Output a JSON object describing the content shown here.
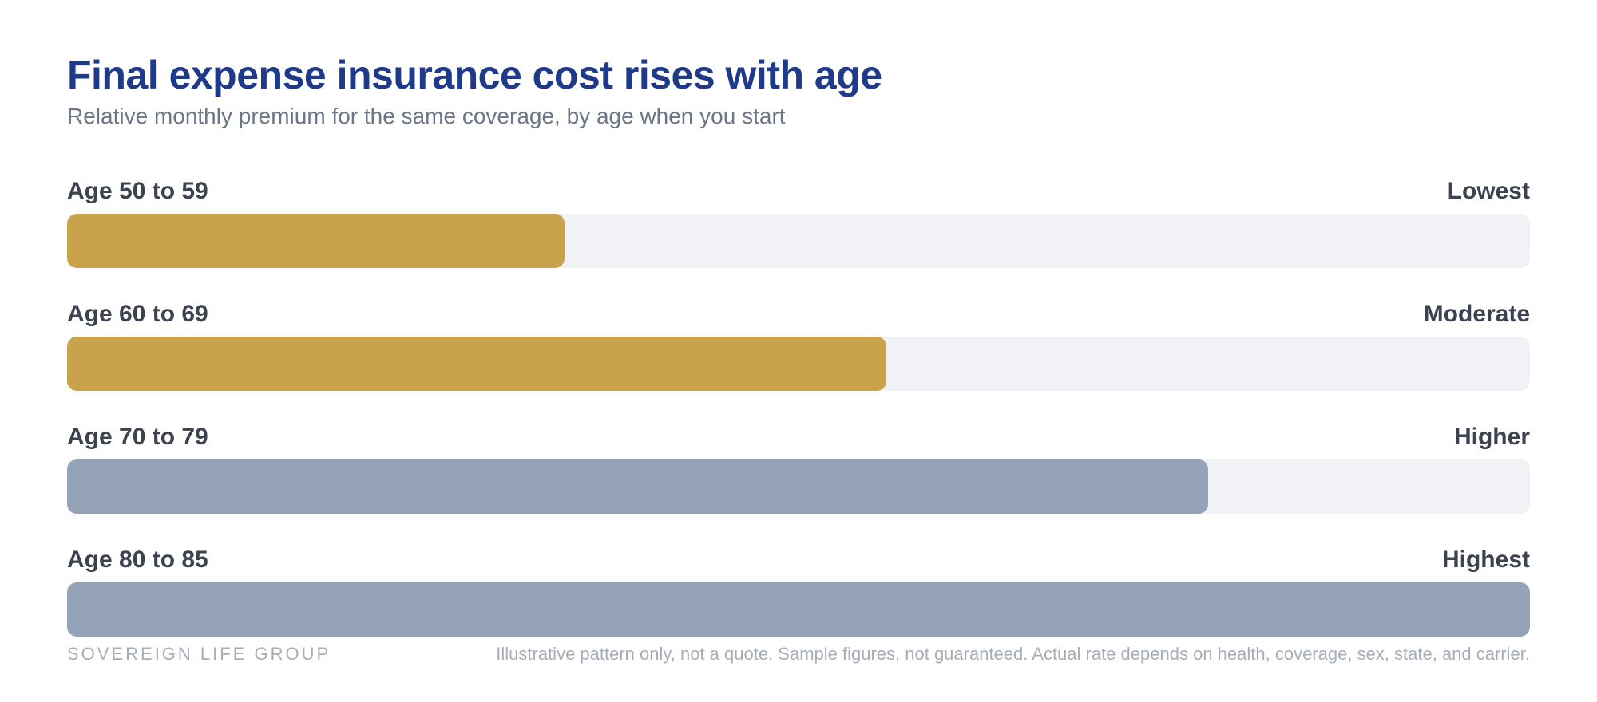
{
  "chart_data": {
    "type": "bar",
    "orientation": "horizontal",
    "title": "Final expense insurance cost rises with age",
    "subtitle": "Relative monthly premium for the same coverage, by age when you start",
    "categories": [
      "Age 50 to 59",
      "Age 60 to 69",
      "Age 70 to 79",
      "Age 80 to 85"
    ],
    "level_labels": [
      "Lowest",
      "Moderate",
      "Higher",
      "Highest"
    ],
    "values": [
      34,
      56,
      78,
      100
    ],
    "xlim": [
      0,
      100
    ],
    "bar_colors": [
      "#c9a24b",
      "#c9a24b",
      "#94a3b8",
      "#94a3b8"
    ],
    "track_color": "#f1f2f6"
  },
  "footer": {
    "brand": "SOVEREIGN LIFE GROUP",
    "note": "Illustrative pattern only, not a quote. Sample figures, not guaranteed. Actual rate depends on health, coverage, sex, state, and carrier."
  }
}
